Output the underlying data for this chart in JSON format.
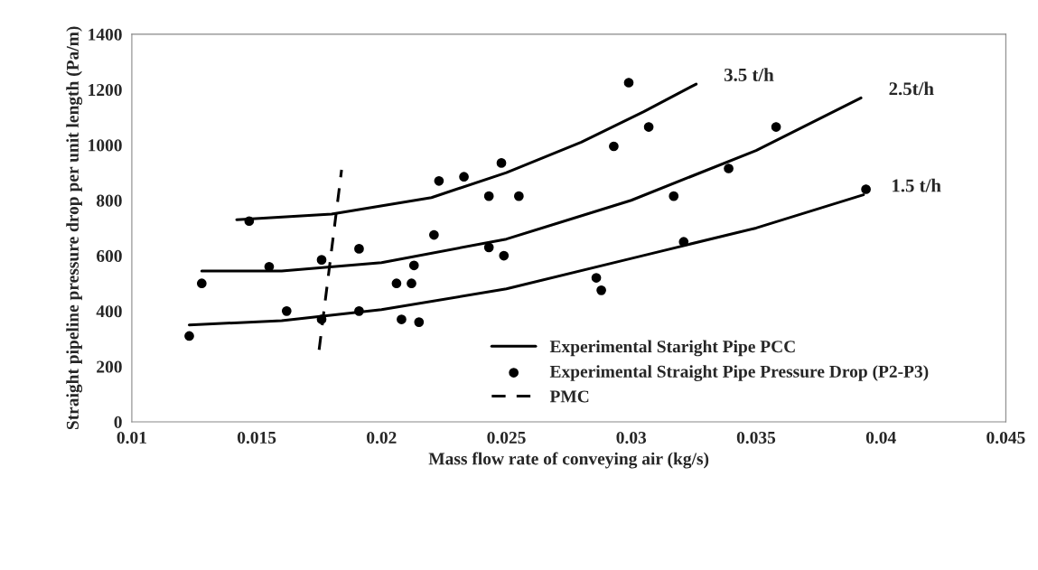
{
  "chart_data": {
    "type": "scatter",
    "xlabel": "Mass flow rate of conveying air (kg/s)",
    "ylabel": "Straight pipeline pressure drop per unit length (Pa/m)",
    "xlim": [
      0.01,
      0.045
    ],
    "xticks": [
      0.01,
      0.015,
      0.02,
      0.025,
      0.03,
      0.035,
      0.04,
      0.045
    ],
    "ylim": [
      0,
      1400
    ],
    "yticks": [
      0,
      200,
      400,
      600,
      800,
      1000,
      1200,
      1400
    ],
    "grid": false,
    "legend": "bottom right",
    "series": [
      {
        "type": "line",
        "name": "Experimental Staright Pipe PCC",
        "color": "#000000",
        "line_style": "solid",
        "marker": "none",
        "x": [
          0.0142,
          0.018,
          0.022,
          0.025,
          0.028,
          0.0305,
          0.0326
        ],
        "values": [
          730,
          750,
          810,
          900,
          1010,
          1120,
          1220
        ]
      },
      {
        "type": "line",
        "color": "#000000",
        "line_style": "solid",
        "marker": "none",
        "x": [
          0.0128,
          0.016,
          0.02,
          0.025,
          0.03,
          0.035,
          0.0392
        ],
        "values": [
          545,
          545,
          575,
          660,
          800,
          980,
          1170
        ]
      },
      {
        "type": "line",
        "color": "#000000",
        "line_style": "solid",
        "marker": "none",
        "x": [
          0.0123,
          0.016,
          0.02,
          0.025,
          0.03,
          0.035,
          0.0393
        ],
        "values": [
          350,
          365,
          405,
          480,
          590,
          700,
          820
        ]
      },
      {
        "name": "Experimental Straight Pipe Pressure Drop (P2-P3)",
        "color": "#000000",
        "marker": "circle",
        "x": [
          0.0123,
          0.0128,
          0.0147,
          0.0155,
          0.0162,
          0.0176,
          0.0176,
          0.0191,
          0.0191,
          0.0206,
          0.0208,
          0.0212,
          0.0213,
          0.0215,
          0.0221,
          0.0223,
          0.0233,
          0.0243,
          0.0243,
          0.0248,
          0.0249,
          0.0255,
          0.0286,
          0.0288,
          0.0293,
          0.0299,
          0.0307,
          0.0317,
          0.0321,
          0.0339,
          0.0358,
          0.0394
        ],
        "values": [
          310,
          500,
          725,
          560,
          400,
          585,
          370,
          625,
          400,
          500,
          370,
          500,
          565,
          360,
          675,
          870,
          885,
          815,
          630,
          935,
          600,
          815,
          520,
          475,
          995,
          1225,
          1065,
          815,
          650,
          915,
          1065,
          840
        ]
      },
      {
        "type": "line",
        "name": "PMC",
        "color": "#000000",
        "line_style": "dashed",
        "marker": "none",
        "x": [
          0.0175,
          0.0184
        ],
        "values": [
          260,
          910
        ]
      }
    ],
    "annotations": [
      {
        "text": "3.5 t/h",
        "x": 0.0326,
        "y": 1220
      },
      {
        "text": "2.5t/h",
        "x": 0.0392,
        "y": 1170
      },
      {
        "text": "1.5 t/h",
        "x": 0.0393,
        "y": 820
      }
    ]
  }
}
